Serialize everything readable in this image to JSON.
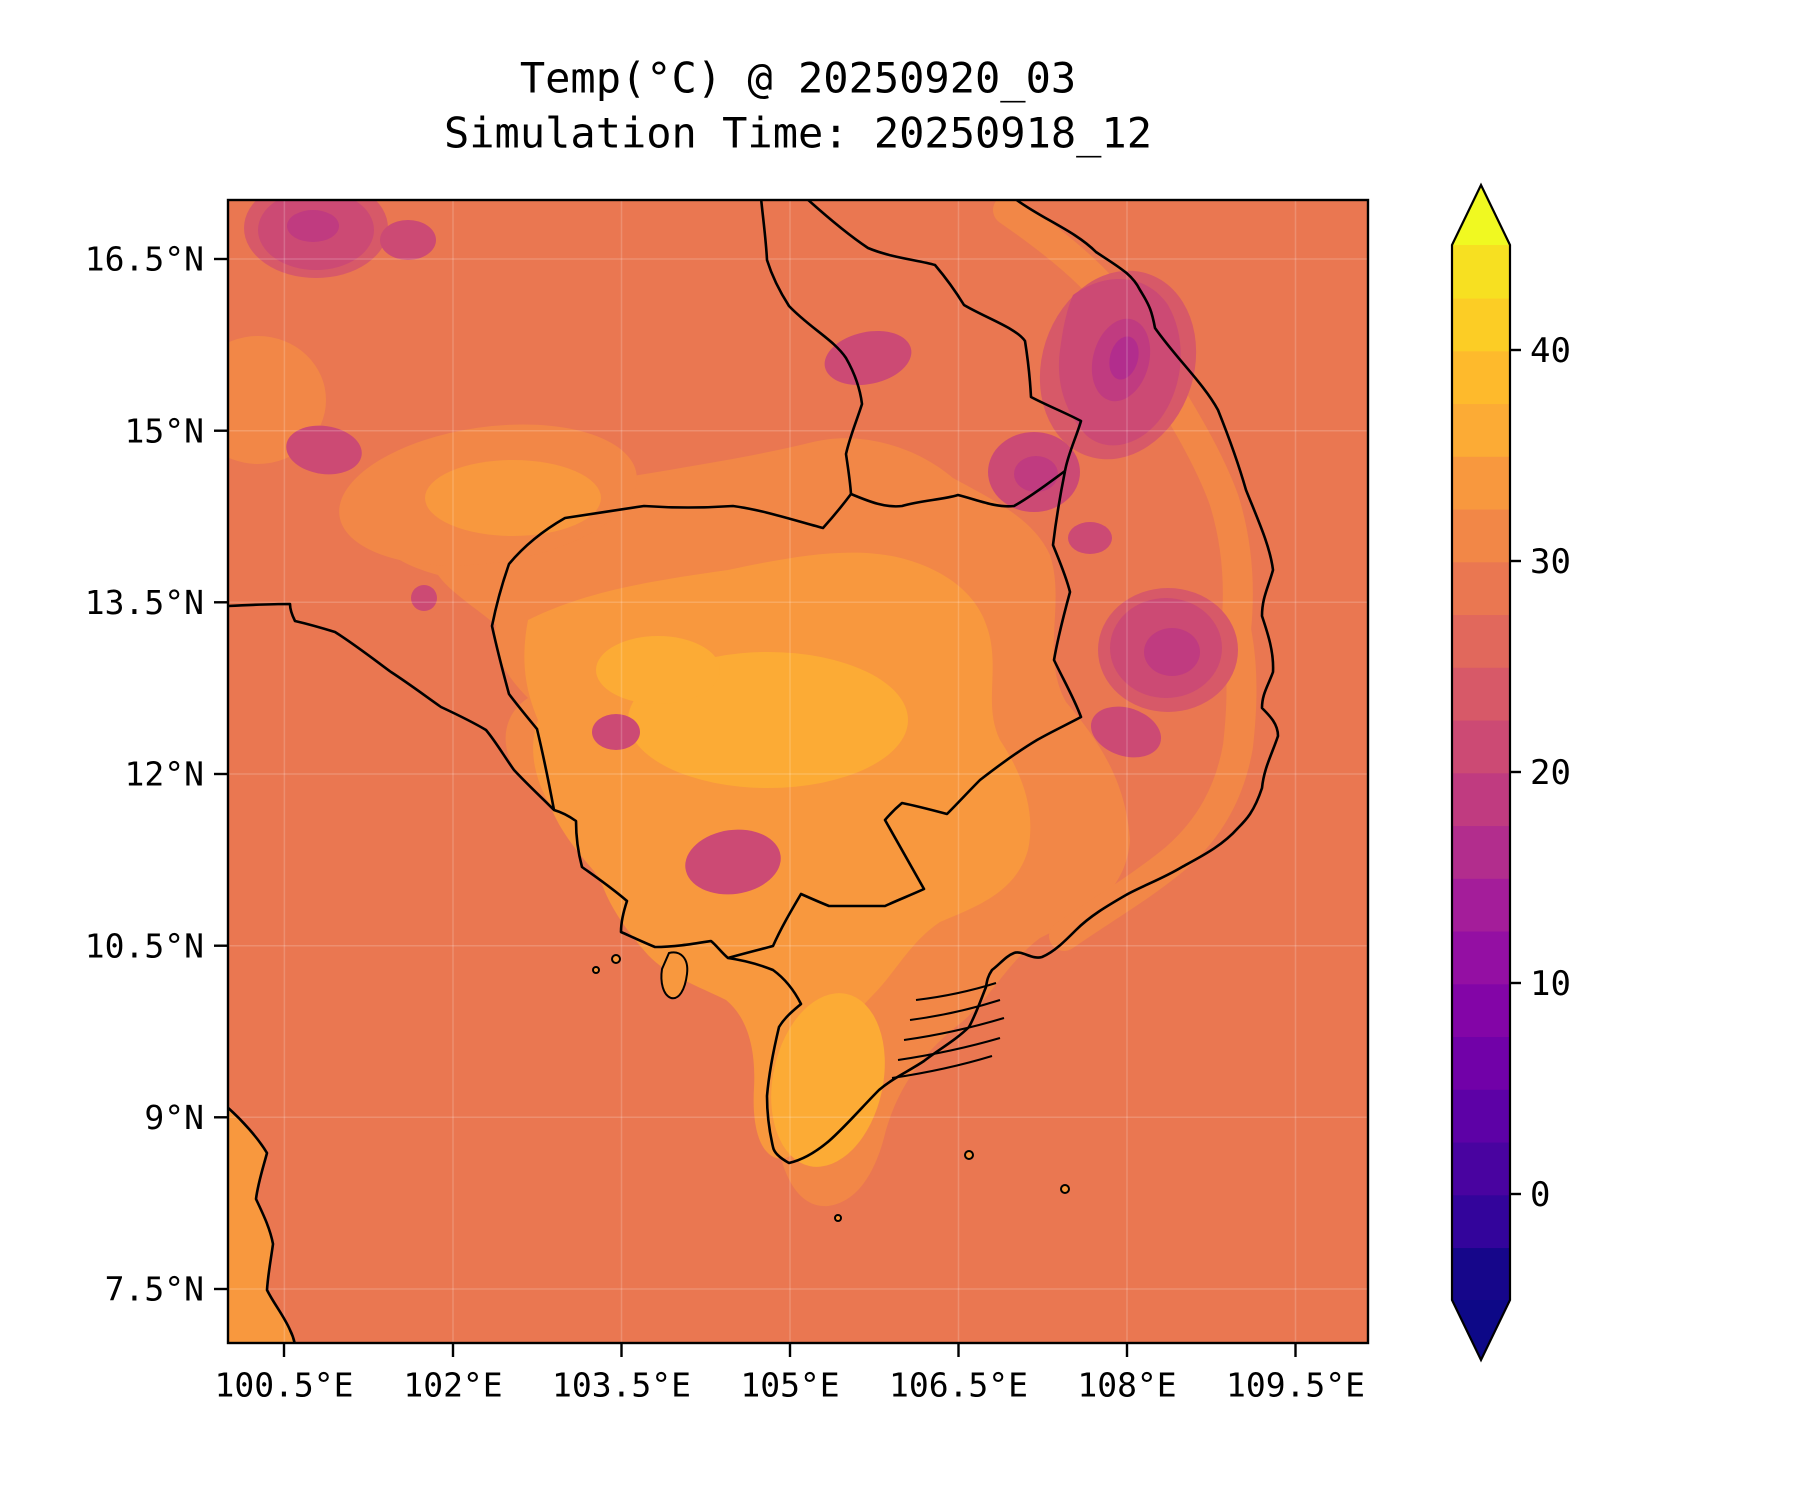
{
  "figure": {
    "background": "#ffffff",
    "title_line1": "Temp(°C) @ 20250920_03",
    "title_line2": "Simulation Time: 20250918_12"
  },
  "chart_data": {
    "type": "heatmap",
    "title": "Temp(°C) @ 20250920_03",
    "subtitle": "Simulation Time: 20250918_12",
    "variable": "Temp",
    "units": "°C",
    "forecast_valid_time": "20250920_03",
    "simulation_time": "20250918_12",
    "region": "Indochina: Thailand, Laos, Cambodia, southern Vietnam, Gulf of Thailand and South China Sea",
    "x_axis": {
      "tick_labels": [
        "100.5°E",
        "102°E",
        "103.5°E",
        "105°E",
        "106.5°E",
        "108°E",
        "109.5°E"
      ],
      "tick_values_deg_e": [
        100.5,
        102,
        103.5,
        105,
        106.5,
        108,
        109.5
      ],
      "range_deg_e": [
        100.0,
        110.15
      ]
    },
    "y_axis": {
      "tick_labels": [
        "16.5°N",
        "15°N",
        "13.5°N",
        "12°N",
        "10.5°N",
        "9°N",
        "7.5°N"
      ],
      "tick_values_deg_n": [
        16.5,
        15,
        13.5,
        12,
        10.5,
        9,
        7.5
      ],
      "range_deg_n": [
        7.0,
        17.0
      ]
    },
    "grid": true,
    "colormap": "plasma, discrete filled-contour bands",
    "colorbar": {
      "tick_labels": [
        "40",
        "30",
        "20",
        "10",
        "0"
      ],
      "tick_values": [
        40,
        30,
        20,
        10,
        0
      ],
      "level_min": -5,
      "level_max": 45,
      "level_step": 2.5,
      "extend": "both",
      "under_color": "#0d0887",
      "over_color": "#f0f921",
      "band_colors": [
        "#16068a",
        "#33049b",
        "#4903a0",
        "#5d01a6",
        "#7101a8",
        "#8305a7",
        "#940fa3",
        "#a41d9a",
        "#b22d8d",
        "#c03b80",
        "#cc4a74",
        "#d75968",
        "#e1685c",
        "#ea7751",
        "#f28747",
        "#f8983e",
        "#fcab35",
        "#feba2c",
        "#fccd25",
        "#f7e021"
      ]
    },
    "field_summary_c": {
      "sea": 28,
      "cambodia_mekong_lowlands": 32,
      "mekong_delta": 32,
      "khorat_plateau_patches": 31,
      "annamite_central_highlands": 21,
      "da_lat_plateau": 21,
      "cardamom_mountains": 22,
      "coolest_highland_cores": 17
    }
  },
  "map_colors": {
    "sea": "#ea7751",
    "land_warm_1": "#f28747",
    "land_warm_2": "#f8983e",
    "land_warm_3": "#fcab35",
    "cool_edge": "#d75968",
    "cool_1": "#cc4a74",
    "cool_2": "#c03b80",
    "cool_3": "#b22d8d",
    "coastline": "#000000",
    "grid_line": "#ffffff"
  }
}
